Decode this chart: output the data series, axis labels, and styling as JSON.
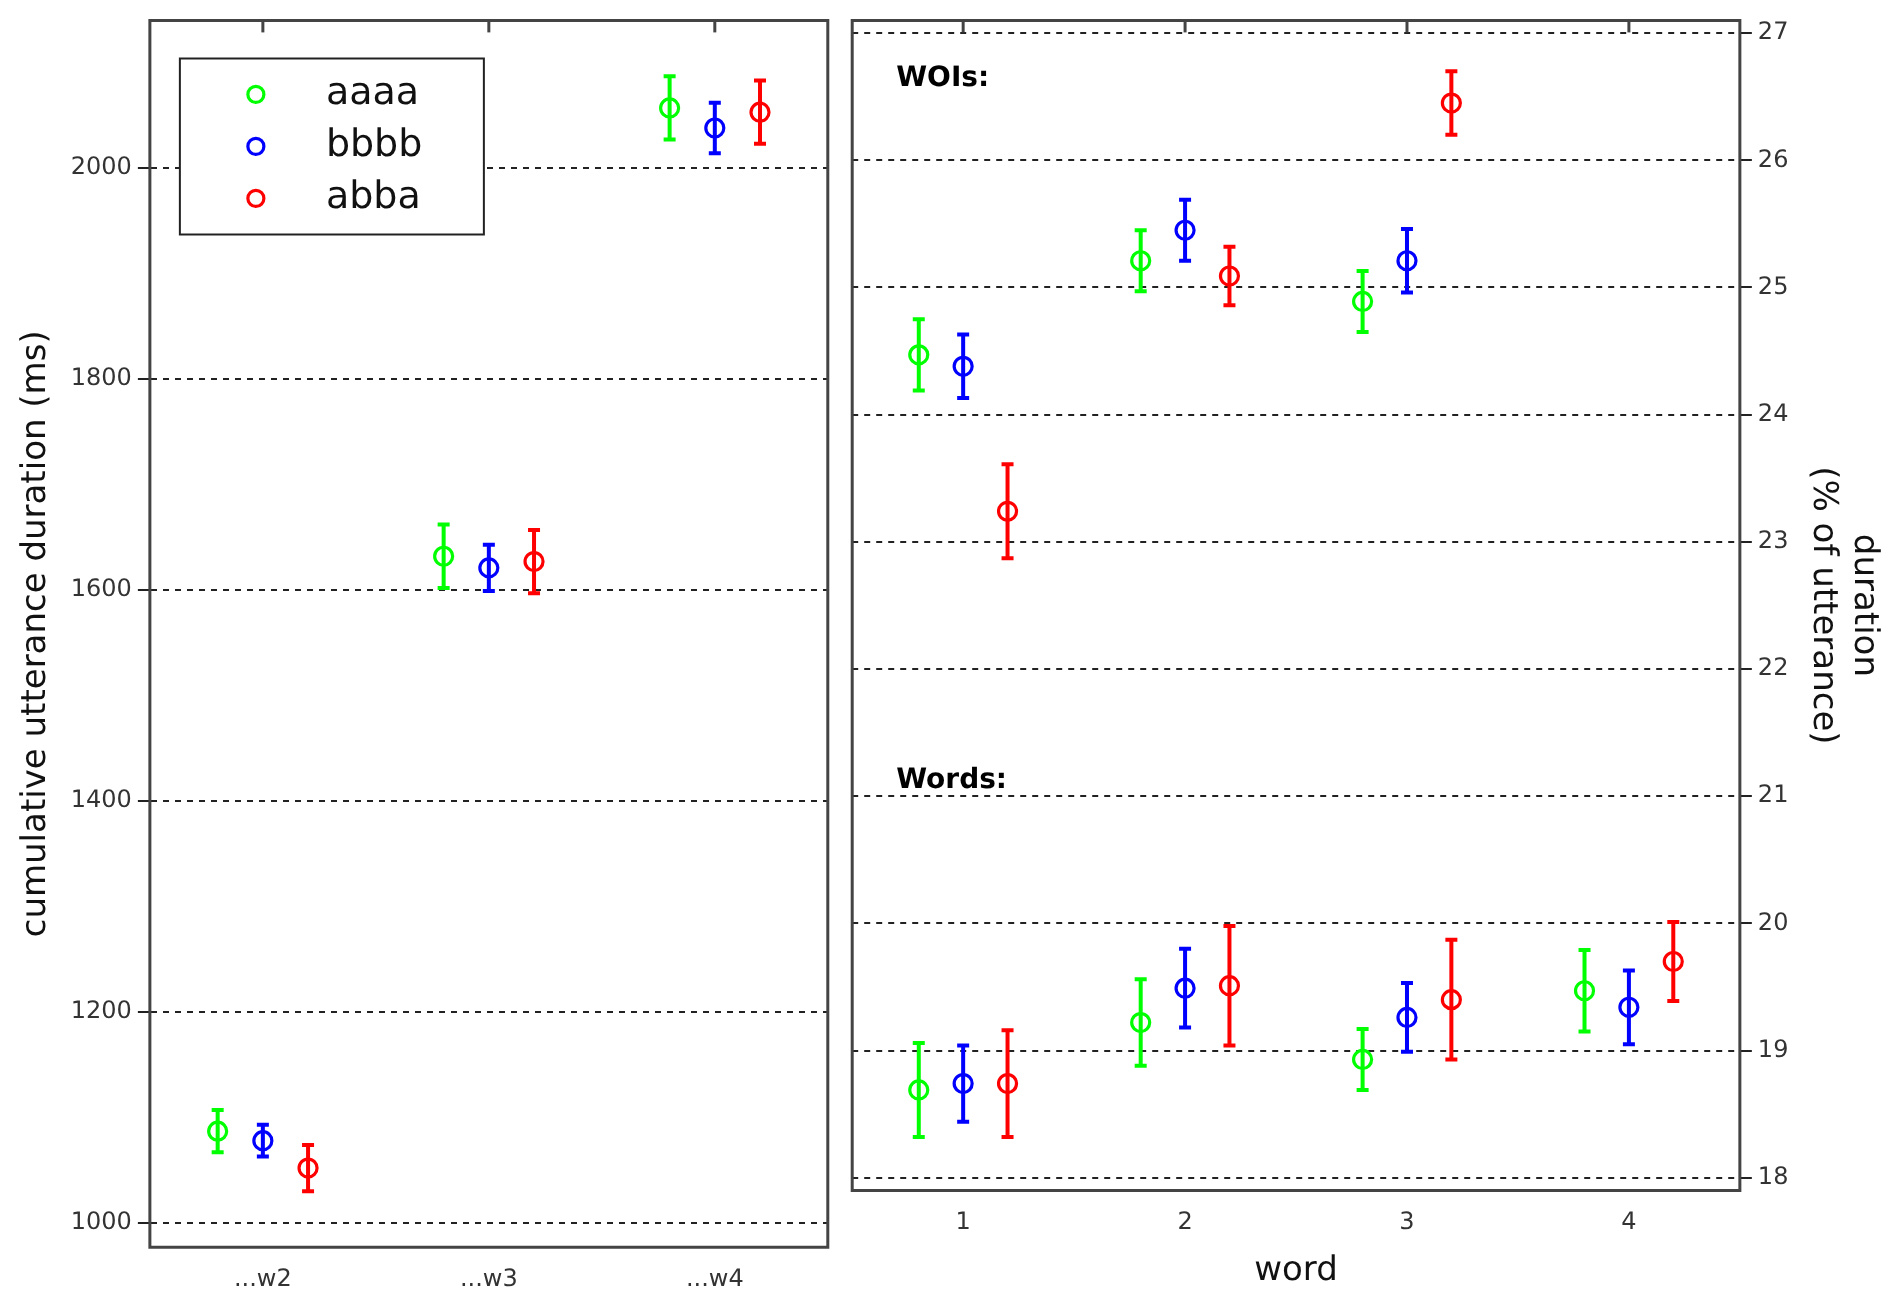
{
  "chart_data": [
    {
      "type": "scatter",
      "ylabel": "cumulative utterance duration (ms)",
      "categories": [
        "...w2",
        "...w3",
        "...w4"
      ],
      "ylim": [
        977,
        2140
      ],
      "yticks": [
        1000,
        1200,
        1400,
        1600,
        1800,
        2000
      ],
      "grid": "y",
      "legend": "top left",
      "marker": "circle",
      "series": [
        {
          "name": "aaaa",
          "color": "#00ff00",
          "values": [
            1087,
            1632,
            2057
          ],
          "errors": [
            20,
            30,
            30
          ]
        },
        {
          "name": "bbbb",
          "color": "#0000ff",
          "values": [
            1078,
            1621,
            2038
          ],
          "errors": [
            15,
            22,
            24
          ]
        },
        {
          "name": "abba",
          "color": "#ff0000",
          "values": [
            1052,
            1627,
            2053
          ],
          "errors": [
            22,
            30,
            30
          ]
        }
      ]
    },
    {
      "type": "scatter",
      "xlabel": "word",
      "y2label": "duration (% of utterance)",
      "xlim": [
        0.5,
        4.5
      ],
      "xticks": [
        1,
        2,
        3,
        4
      ],
      "y2lim": [
        17.9,
        27.1
      ],
      "y2ticks": [
        18,
        19,
        20,
        21,
        22,
        23,
        24,
        25,
        26,
        27
      ],
      "grid": "y",
      "marker": "circle",
      "annotations": [
        "WOIs:",
        "Words:"
      ],
      "series": [
        {
          "color": "#00ff00",
          "axis": "y2",
          "x": [
            0.8,
            1.8,
            2.8
          ],
          "values": [
            24.47,
            25.21,
            24.89
          ],
          "errors": [
            0.28,
            0.24,
            0.24
          ]
        },
        {
          "color": "#0000ff",
          "axis": "y2",
          "x": [
            1,
            2,
            3
          ],
          "values": [
            24.38,
            25.45,
            25.21
          ],
          "errors": [
            0.25,
            0.24,
            0.25
          ]
        },
        {
          "color": "#ff0000",
          "axis": "y2",
          "x": [
            1.2,
            2.2,
            3.2
          ],
          "values": [
            23.24,
            25.09,
            26.45
          ],
          "errors": [
            0.37,
            0.23,
            0.25
          ]
        },
        {
          "color": "#00ff00",
          "axis": "y2",
          "x": [
            0.8,
            1.8,
            2.8,
            3.8
          ],
          "values": [
            18.69,
            19.22,
            18.93,
            19.47
          ],
          "errors": [
            0.37,
            0.34,
            0.24,
            0.32
          ]
        },
        {
          "color": "#0000ff",
          "axis": "y2",
          "x": [
            1,
            2,
            3,
            4
          ],
          "values": [
            18.74,
            19.49,
            19.26,
            19.34
          ],
          "errors": [
            0.3,
            0.31,
            0.27,
            0.29
          ]
        },
        {
          "color": "#ff0000",
          "axis": "y2",
          "x": [
            1.2,
            2.2,
            3.2,
            4.2
          ],
          "values": [
            18.74,
            19.51,
            19.4,
            19.7
          ],
          "errors": [
            0.42,
            0.47,
            0.47,
            0.31
          ]
        }
      ]
    }
  ]
}
